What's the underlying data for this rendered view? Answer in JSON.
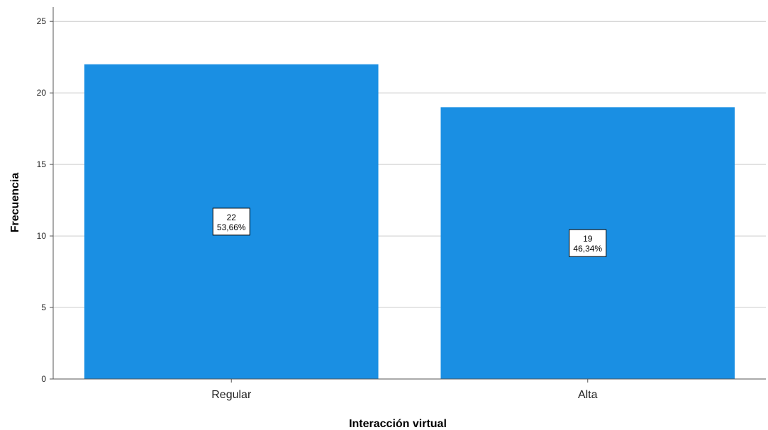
{
  "chart_data": {
    "type": "bar",
    "title": "",
    "xlabel": "Interacción virtual",
    "ylabel": "Frecuencia",
    "categories": [
      "Regular",
      "Alta"
    ],
    "values": [
      22,
      19
    ],
    "value_labels": [
      "22",
      "19"
    ],
    "percent_labels": [
      "53,66%",
      "46,34%"
    ],
    "ylim": [
      0,
      26
    ],
    "yticks": [
      0,
      5,
      10,
      15,
      20,
      25
    ],
    "grid": true,
    "bar_color": "#1a8fe3"
  }
}
